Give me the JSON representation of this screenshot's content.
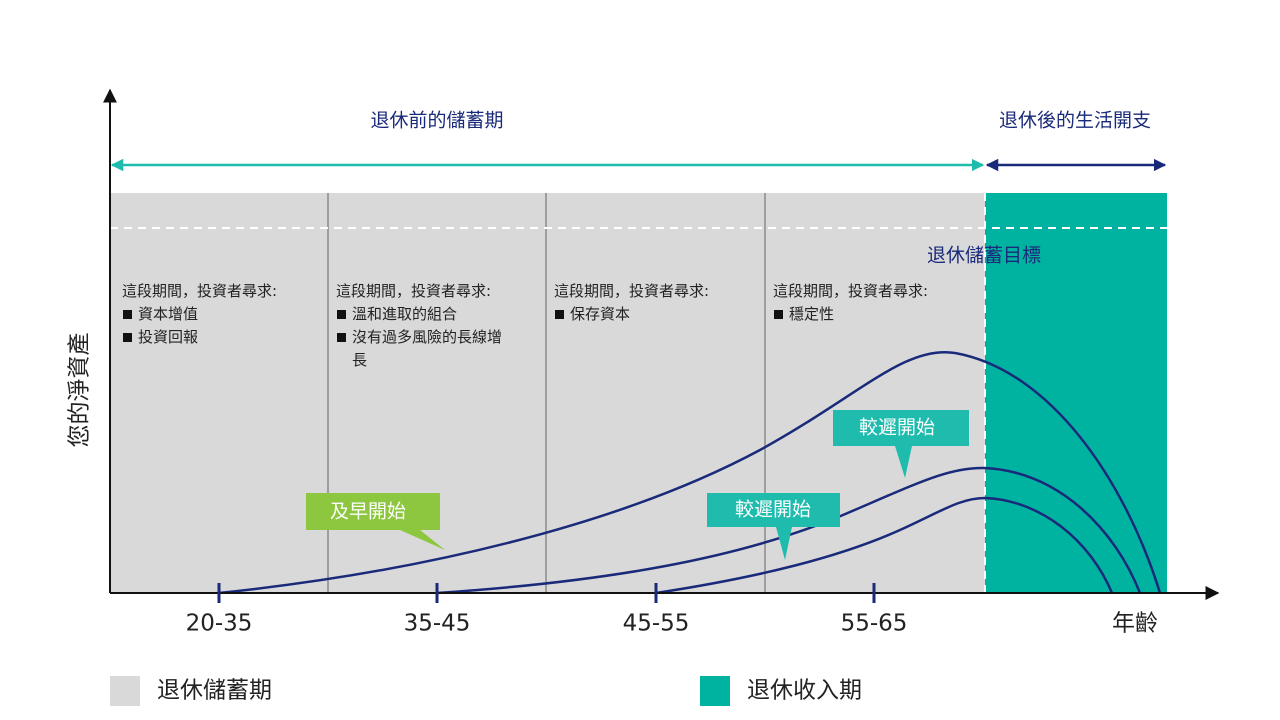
{
  "header": {
    "pre_retirement": "退休前的儲蓄期",
    "post_retirement": "退休後的生活開支"
  },
  "target_label": "退休儲蓄目標",
  "phases": [
    {
      "intro": "這段期間，投資者尋求:",
      "bullets": [
        "資本增值",
        "投資回報"
      ]
    },
    {
      "intro": "這段期間，投資者尋求:",
      "bullets": [
        "溫和進取的組合",
        "沒有過多風險的長線增長"
      ]
    },
    {
      "intro": "這段期間，投資者尋求:",
      "bullets": [
        "保存資本"
      ]
    },
    {
      "intro": "這段期間，投資者尋求:",
      "bullets": [
        "穩定性"
      ]
    }
  ],
  "callouts": [
    "及早開始",
    "較遲開始",
    "較遲開始"
  ],
  "axis": {
    "y_label": "您的淨資產",
    "x_labels": [
      "20-35",
      "35-45",
      "45-55",
      "55-65"
    ],
    "x_title": "年齡"
  },
  "legend": [
    "退休儲蓄期",
    "退休收入期"
  ]
}
